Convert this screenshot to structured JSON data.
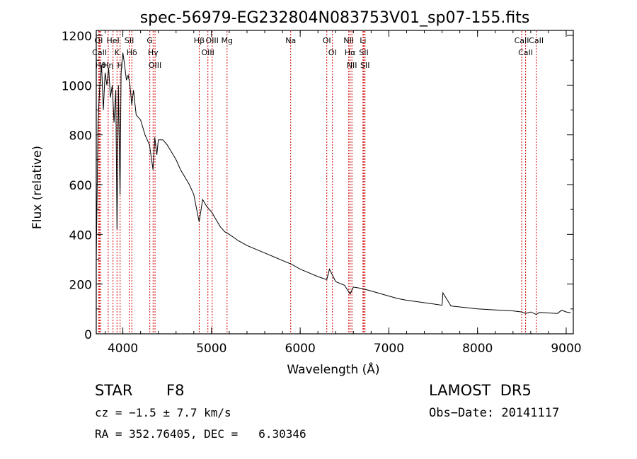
{
  "chart_data": {
    "type": "line",
    "title": "spec-56979-EG232804N083753V01_sp07-155.fits",
    "xlabel": "Wavelength (Å)",
    "ylabel": "Flux (relative)",
    "xlim": [
      3700,
      9080
    ],
    "ylim": [
      0,
      1220
    ],
    "xticks": [
      "4000",
      "5000",
      "6000",
      "7000",
      "8000",
      "9000"
    ],
    "yticks": [
      "0",
      "200",
      "400",
      "600",
      "800",
      "1000",
      "1200"
    ],
    "grid": false,
    "series": [
      {
        "x": [
          3700,
          3720,
          3740,
          3760,
          3780,
          3800,
          3820,
          3840,
          3860,
          3880,
          3900,
          3920,
          3934,
          3950,
          3968,
          3980,
          4000,
          4020,
          4040,
          4060,
          4080,
          4101,
          4120,
          4150,
          4200,
          4250,
          4300,
          4340,
          4360,
          4383,
          4400,
          4450,
          4500,
          4550,
          4600,
          4650,
          4700,
          4750,
          4800,
          4861,
          4900,
          4950,
          5000,
          5050,
          5100,
          5150,
          5200,
          5300,
          5400,
          5500,
          5600,
          5700,
          5800,
          5900,
          6000,
          6100,
          6200,
          6300,
          6330,
          6400,
          6500,
          6563,
          6600,
          6700,
          6800,
          6900,
          7000,
          7100,
          7200,
          7300,
          7400,
          7500,
          7600,
          7610,
          7700,
          7800,
          7900,
          8000,
          8100,
          8200,
          8300,
          8400,
          8500,
          8542,
          8600,
          8662,
          8700,
          8800,
          8900,
          8950,
          9000,
          9050
        ],
        "values": [
          300,
          850,
          1000,
          1080,
          900,
          1050,
          1000,
          1070,
          950,
          1000,
          850,
          980,
          420,
          1000,
          560,
          1050,
          1130,
          1080,
          1020,
          1040,
          1000,
          920,
          980,
          880,
          860,
          800,
          760,
          660,
          790,
          720,
          780,
          780,
          760,
          730,
          700,
          660,
          630,
          600,
          560,
          450,
          540,
          510,
          490,
          460,
          430,
          410,
          400,
          375,
          355,
          340,
          325,
          310,
          295,
          280,
          260,
          245,
          230,
          218,
          260,
          210,
          195,
          160,
          188,
          182,
          172,
          162,
          152,
          142,
          135,
          130,
          125,
          120,
          115,
          165,
          112,
          108,
          104,
          100,
          98,
          96,
          94,
          92,
          88,
          82,
          88,
          78,
          86,
          84,
          82,
          95,
          88,
          85
        ]
      }
    ],
    "lines": [
      {
        "label": "OI",
        "x": 3727
      },
      {
        "label": "CaII",
        "x": 3737
      },
      {
        "label": "Hθ",
        "x": 3750
      },
      {
        "label": "Hη",
        "x": 3835
      },
      {
        "label": "HeI",
        "x": 3889
      },
      {
        "label": "K",
        "x": 3934
      },
      {
        "label": "H",
        "x": 3969
      },
      {
        "label": "SII",
        "x": 4072
      },
      {
        "label": "Hδ",
        "x": 4101
      },
      {
        "label": "G",
        "x": 4304
      },
      {
        "label": "Hγ",
        "x": 4341
      },
      {
        "label": "OIII",
        "x": 4363
      },
      {
        "label": "Hβ",
        "x": 4861
      },
      {
        "label": "OIII",
        "x": 4959
      },
      {
        "label": "OIII",
        "x": 5007
      },
      {
        "label": "Mg",
        "x": 5175
      },
      {
        "label": "Na",
        "x": 5893
      },
      {
        "label": "OI",
        "x": 6300
      },
      {
        "label": "OI",
        "x": 6364
      },
      {
        "label": "NII",
        "x": 6548
      },
      {
        "label": "Hα",
        "x": 6563
      },
      {
        "label": "NII",
        "x": 6583
      },
      {
        "label": "Li",
        "x": 6708
      },
      {
        "label": "SII",
        "x": 6717
      },
      {
        "label": "SII",
        "x": 6731
      },
      {
        "label": "CaII",
        "x": 8498
      },
      {
        "label": "CaII",
        "x": 8542
      },
      {
        "label": "CaII",
        "x": 8662
      }
    ]
  },
  "info": {
    "object_class": "STAR",
    "subclass": "F8",
    "survey": "LAMOST  DR5",
    "cz": "cz = −1.5 ± 7.7 km/s",
    "obs_date": "Obs−Date: 20141117",
    "coords": "RA = 352.76405, DEC =   6.30346"
  },
  "colors": {
    "spectrum": "#000000",
    "line_markers": "#d00000",
    "background": "#ffffff"
  }
}
